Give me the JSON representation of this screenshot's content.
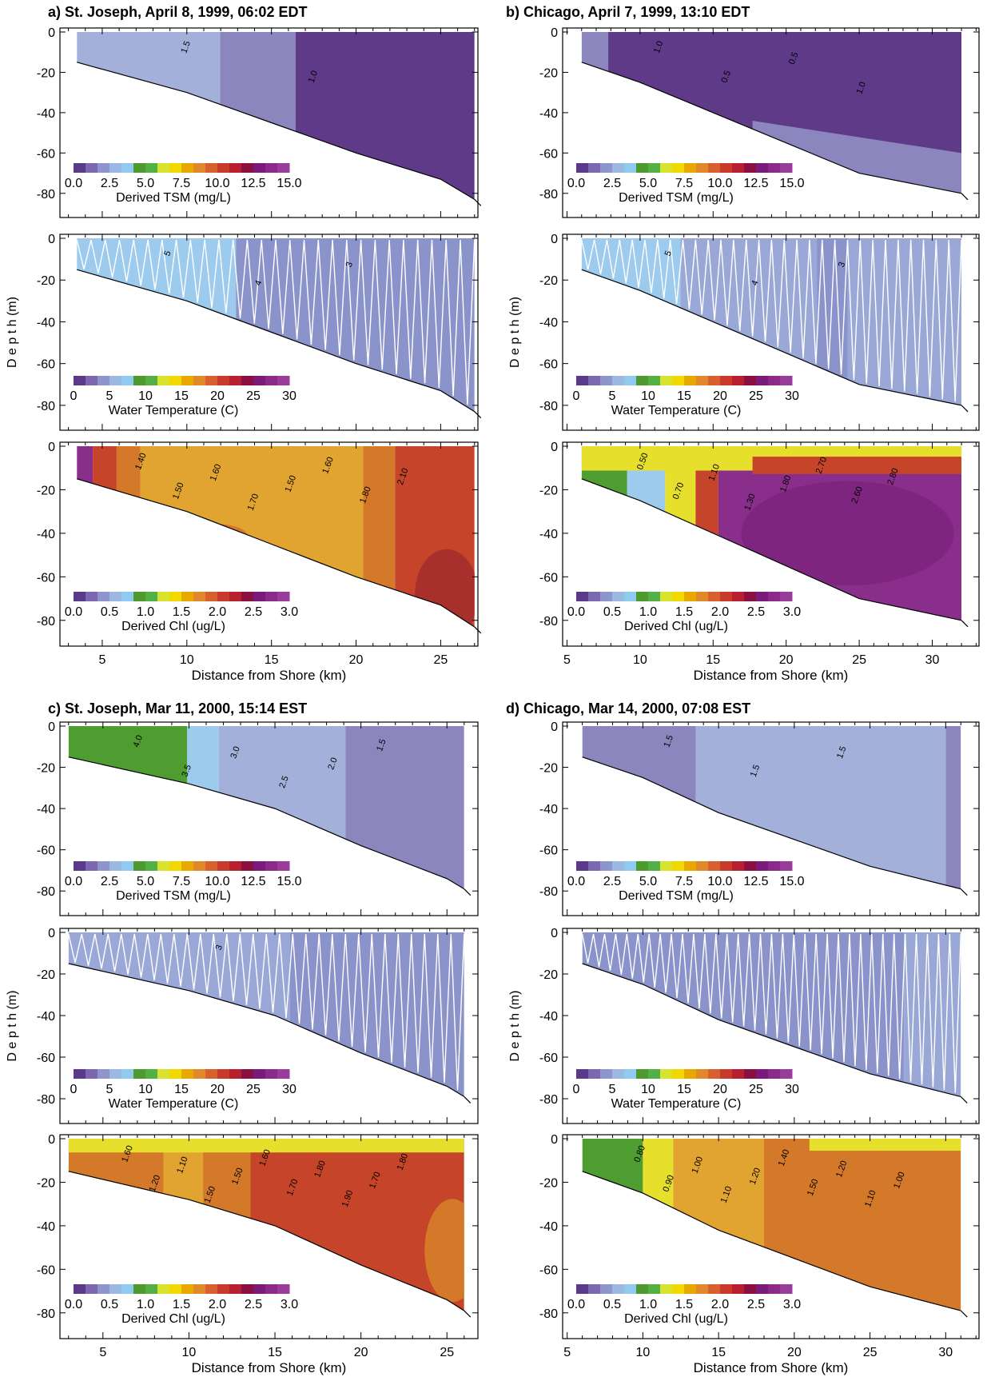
{
  "colorbar_colors": [
    "#5b3a8c",
    "#7b68b0",
    "#8e95cc",
    "#9bb8e0",
    "#8fcaf0",
    "#4e9a2e",
    "#52b046",
    "#d7e32c",
    "#f1d800",
    "#e8a800",
    "#e0882a",
    "#d8602e",
    "#c83a2a",
    "#b82030",
    "#8a1040",
    "#7a1a7a",
    "#8c2a8c",
    "#9a3c9a"
  ],
  "fill_colors": {
    "tsm_0_1": "#5e3a88",
    "tsm_1_1_5": "#8c86bf",
    "tsm_1_5_2": "#a3b1da",
    "tsm_2_3": "#9ccbee",
    "tsm_3_5": "#4f9c30",
    "temp_0_3": "#9ccbee",
    "temp_3_5": "#8b93cb",
    "temp_light": "#9aa8d8",
    "chl_green": "#4f9c30",
    "chl_blue": "#9ccbee",
    "chl_yellow": "#e6e02c",
    "chl_lightorange": "#e2a430",
    "chl_orange": "#d4782a",
    "chl_red": "#c6452a",
    "chl_darkred": "#a8302c",
    "chl_purple": "#8a2e8c",
    "chl_darkpurple": "#6e1c6e"
  },
  "shared": {
    "ylabel": "D e p t h (m)",
    "xlabel": "Distance from Shore (km)",
    "depth_ticks": [
      "0",
      "-20",
      "-40",
      "-60",
      "-80"
    ]
  },
  "panels": [
    {
      "id": "a",
      "title": "a) St. Joseph, April 8, 1999, 06:02 EDT",
      "x_ticks": [
        "5",
        "10",
        "15",
        "20",
        "25"
      ],
      "tsm_colorbar": {
        "ticks": [
          "0.0",
          "2.5",
          "5.0",
          "7.5",
          "10.0",
          "12.5",
          "15.0"
        ],
        "label": "Derived TSM (mg/L)"
      },
      "temp_colorbar": {
        "ticks": [
          "0",
          "5",
          "10",
          "15",
          "20",
          "25",
          "30"
        ],
        "label": "Water Temperature (C)"
      },
      "chl_colorbar": {
        "ticks": [
          "0.0",
          "0.5",
          "1.0",
          "1.5",
          "2.0",
          "2.5",
          "3.0"
        ],
        "label": "Derived Chl (ug/L)"
      },
      "tsm_contour_labels": [
        "1.5",
        "1.0"
      ],
      "temp_contour_labels": [
        "5",
        "4",
        "3"
      ],
      "chl_contour_labels": [
        "1.40",
        "1.50",
        "1.60",
        "1.70",
        "1.50",
        "1.60",
        "1.80",
        "2.10"
      ]
    },
    {
      "id": "b",
      "title": "b) Chicago, April 7, 1999, 13:10 EDT",
      "x_ticks": [
        "5",
        "10",
        "15",
        "20",
        "25",
        "30"
      ],
      "tsm_colorbar": {
        "ticks": [
          "0.0",
          "2.5",
          "5.0",
          "7.5",
          "10.0",
          "12.5",
          "15.0"
        ],
        "label": "Derived TSM (mg/L)"
      },
      "temp_colorbar": {
        "ticks": [
          "0",
          "5",
          "10",
          "15",
          "20",
          "25",
          "30"
        ],
        "label": "Water Temperature (C)"
      },
      "chl_colorbar": {
        "ticks": [
          "0.0",
          "0.5",
          "1.0",
          "1.5",
          "2.0",
          "2.5",
          "3.0"
        ],
        "label": "Derived Chl (ug/L)"
      },
      "tsm_contour_labels": [
        "1.0",
        "0.5",
        "0.5",
        "1.0"
      ],
      "temp_contour_labels": [
        "5",
        "4",
        "3"
      ],
      "chl_contour_labels": [
        "0.50",
        "0.70",
        "1.10",
        "1.30",
        "1.80",
        "2.70",
        "2.60",
        "2.80"
      ]
    },
    {
      "id": "c",
      "title": "c) St. Joseph, Mar 11, 2000, 15:14 EST",
      "x_ticks": [
        "5",
        "10",
        "15",
        "20",
        "25"
      ],
      "tsm_colorbar": {
        "ticks": [
          "0.0",
          "2.5",
          "5.0",
          "7.5",
          "10.0",
          "12.5",
          "15.0"
        ],
        "label": "Derived TSM (mg/L)"
      },
      "temp_colorbar": {
        "ticks": [
          "0",
          "5",
          "10",
          "15",
          "20",
          "25",
          "30"
        ],
        "label": "Water Temperature (C)"
      },
      "chl_colorbar": {
        "ticks": [
          "0.0",
          "0.5",
          "1.0",
          "1.5",
          "2.0",
          "2.5",
          "3.0"
        ],
        "label": "Derived Chl (ug/L)"
      },
      "tsm_contour_labels": [
        "4.0",
        "3.5",
        "3.0",
        "2.5",
        "2.0",
        "1.5"
      ],
      "temp_contour_labels": [
        "3"
      ],
      "chl_contour_labels": [
        "1.60",
        "1.20",
        "1.10",
        "1.50",
        "1.50",
        "1.60",
        "1.70",
        "1.80",
        "1.90",
        "1.70",
        "1.80"
      ]
    },
    {
      "id": "d",
      "title": "d) Chicago, Mar 14, 2000, 07:08 EST",
      "x_ticks": [
        "5",
        "10",
        "15",
        "20",
        "25",
        "30"
      ],
      "tsm_colorbar": {
        "ticks": [
          "0.0",
          "2.5",
          "5.0",
          "7.5",
          "10.0",
          "12.5",
          "15.0"
        ],
        "label": "Derived TSM (mg/L)"
      },
      "temp_colorbar": {
        "ticks": [
          "0",
          "5",
          "10",
          "15",
          "20",
          "25",
          "30"
        ],
        "label": "Water Temperature (C)"
      },
      "chl_colorbar": {
        "ticks": [
          "0.0",
          "0.5",
          "1.0",
          "1.5",
          "2.0",
          "2.5",
          "3.0"
        ],
        "label": "Derived Chl (ug/L)"
      },
      "tsm_contour_labels": [
        "1.5",
        "1.5",
        "1.5"
      ],
      "temp_contour_labels": [],
      "chl_contour_labels": [
        "0.80",
        "0.90",
        "1.00",
        "1.10",
        "1.20",
        "1.40",
        "1.50",
        "1.20",
        "1.10",
        "1.00"
      ]
    }
  ],
  "chart_data": [
    {
      "type": "heatmap",
      "title": "a) St. Joseph, April 8, 1999, 06:02 EDT",
      "xlabel": "Distance from Shore (km)",
      "ylabel": "D e p t h (m)",
      "xlim": [
        2.5,
        27
      ],
      "ylim": [
        -90,
        0
      ],
      "bottom_depth": {
        "x": [
          3.5,
          10,
          15,
          20,
          25,
          27
        ],
        "y": [
          -15,
          -30,
          -45,
          -60,
          -73,
          -83
        ]
      },
      "sections": [
        "Derived TSM (mg/L)",
        "Water Temperature (C)",
        "Derived Chl (ug/L)"
      ]
    },
    {
      "type": "heatmap",
      "title": "b) Chicago, April 7, 1999, 13:10 EDT",
      "xlabel": "Distance from Shore (km)",
      "ylabel": "D e p t h (m)",
      "xlim": [
        5,
        33
      ],
      "ylim": [
        -90,
        0
      ],
      "bottom_depth": {
        "x": [
          6,
          10,
          15,
          20,
          25,
          32
        ],
        "y": [
          -15,
          -25,
          -40,
          -55,
          -70,
          -80
        ]
      },
      "sections": [
        "Derived TSM (mg/L)",
        "Water Temperature (C)",
        "Derived Chl (ug/L)"
      ]
    },
    {
      "type": "heatmap",
      "title": "c) St. Joseph, Mar 11, 2000, 15:14 EST",
      "xlabel": "Distance from Shore (km)",
      "ylabel": "D e p t h (m)",
      "xlim": [
        2.5,
        27
      ],
      "ylim": [
        -90,
        0
      ],
      "bottom_depth": {
        "x": [
          3,
          10,
          15,
          20,
          25,
          26
        ],
        "y": [
          -15,
          -28,
          -40,
          -58,
          -74,
          -79
        ]
      },
      "sections": [
        "Derived TSM (mg/L)",
        "Water Temperature (C)",
        "Derived Chl (ug/L)"
      ]
    },
    {
      "type": "heatmap",
      "title": "d) Chicago, Mar 14, 2000, 07:08 EST",
      "xlabel": "Distance from Shore (km)",
      "ylabel": "D e p t h (m)",
      "xlim": [
        5,
        33
      ],
      "ylim": [
        -90,
        0
      ],
      "bottom_depth": {
        "x": [
          6,
          10,
          15,
          20,
          25,
          31
        ],
        "y": [
          -15,
          -25,
          -42,
          -55,
          -68,
          -79
        ]
      },
      "sections": [
        "Derived TSM (mg/L)",
        "Water Temperature (C)",
        "Derived Chl (ug/L)"
      ]
    }
  ]
}
